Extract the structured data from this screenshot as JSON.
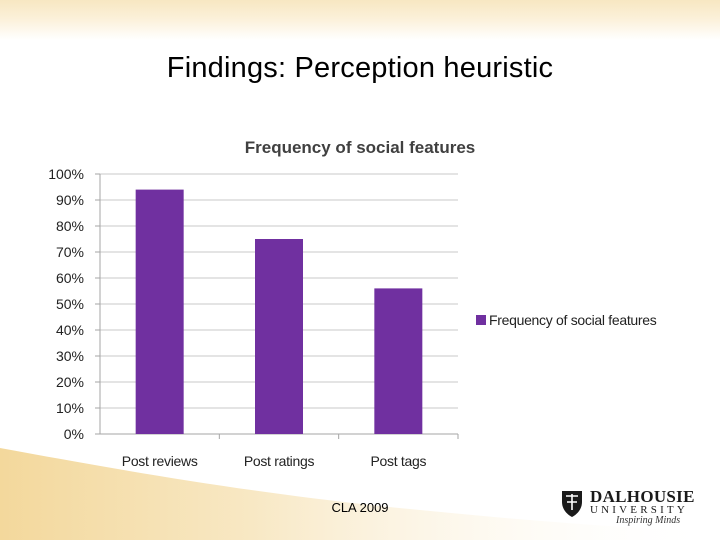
{
  "slide": {
    "title": "Findings: Perception heuristic",
    "footer": "CLA 2009",
    "logo": {
      "name": "DALHOUSIE",
      "university": "UNIVERSITY",
      "tagline": "Inspiring Minds"
    }
  },
  "chart_data": {
    "type": "bar",
    "title": "Frequency of social features",
    "categories": [
      "Post reviews",
      "Post ratings",
      "Post tags"
    ],
    "series": [
      {
        "name": "Frequency of social features",
        "values": [
          94,
          75,
          56
        ]
      }
    ],
    "ylim": [
      0,
      100
    ],
    "yticks": [
      "0%",
      "10%",
      "20%",
      "30%",
      "40%",
      "50%",
      "60%",
      "70%",
      "80%",
      "90%",
      "100%"
    ],
    "grid": true,
    "legend": "right",
    "colors": {
      "bar": "#7030a0",
      "grid": "#c8c8c8",
      "axis": "#a6a6a6"
    }
  }
}
